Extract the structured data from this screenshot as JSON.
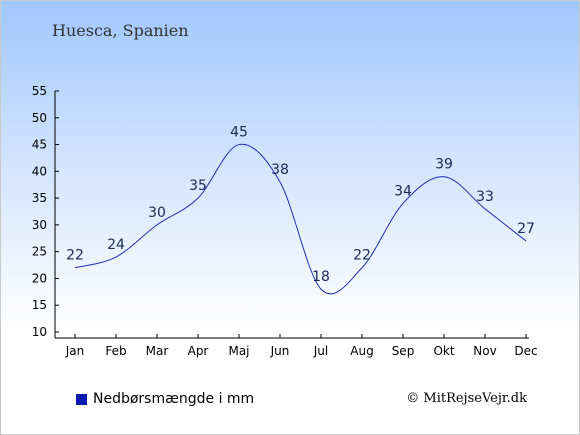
{
  "title": "Huesca, Spanien",
  "legend_label": "Nedbørsmængde i mm",
  "credit": "© MitRejseVejr.dk",
  "colors": {
    "series": "#1f2fb0",
    "swatch": "#0a1ab0"
  },
  "chart_data": {
    "type": "line",
    "title": "Huesca, Spanien",
    "xlabel": "",
    "ylabel": "",
    "categories": [
      "Jan",
      "Feb",
      "Mar",
      "Apr",
      "Maj",
      "Jun",
      "Jul",
      "Aug",
      "Sep",
      "Okt",
      "Nov",
      "Dec"
    ],
    "series": [
      {
        "name": "Nedbørsmængde i mm",
        "values": [
          22,
          24,
          30,
          35,
          45,
          38,
          18,
          22,
          34,
          39,
          33,
          27
        ]
      }
    ],
    "ylim": [
      10,
      55
    ],
    "yticks": [
      10,
      15,
      20,
      25,
      30,
      35,
      40,
      45,
      50,
      55
    ],
    "grid": false,
    "legend": "bottom-left"
  }
}
